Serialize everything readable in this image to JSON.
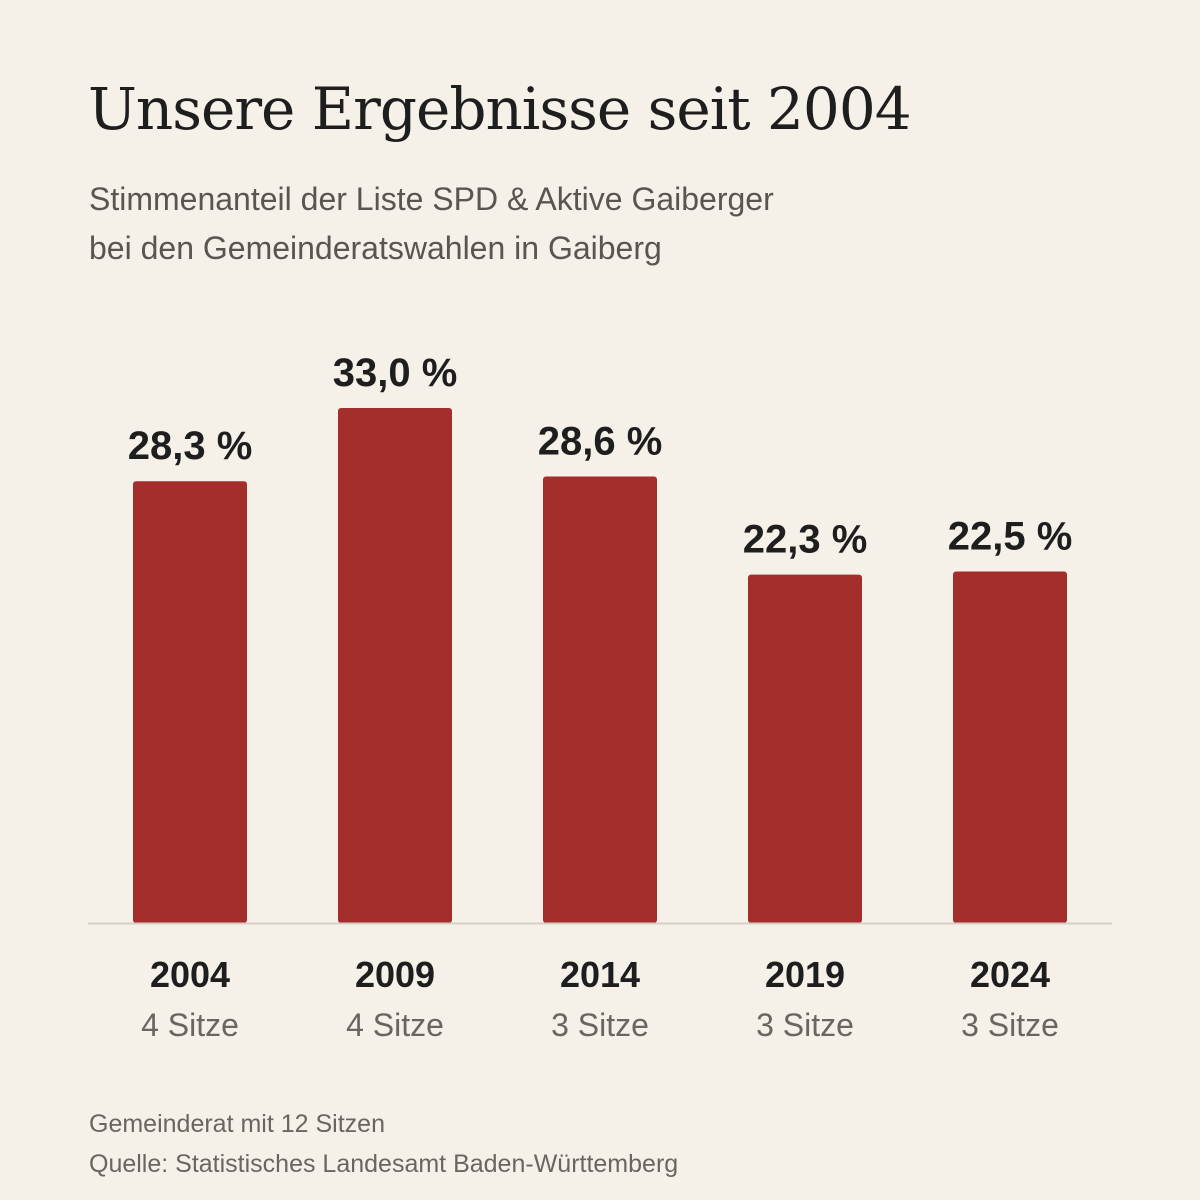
{
  "title": "Unsere Ergebnisse seit 2004",
  "subtitle": {
    "line1": "Stimmenanteil der Liste SPD & Aktive Gaiberger",
    "line2": "bei den Gemeinderatswahlen in Gaiberg"
  },
  "chart_data": {
    "type": "bar",
    "categories": [
      "2004",
      "2009",
      "2014",
      "2019",
      "2024"
    ],
    "values": [
      28.3,
      33.0,
      28.6,
      22.3,
      22.5
    ],
    "value_labels": [
      "28,3 %",
      "33,0 %",
      "28,6 %",
      "22,3 %",
      "22,5 %"
    ],
    "sublabels": [
      "4 Sitze",
      "4 Sitze",
      "3 Sitze",
      "3 Sitze",
      "3 Sitze"
    ],
    "ylim": [
      0,
      33.0
    ],
    "grid": false,
    "bar_color": "#a32e2b"
  },
  "footer": {
    "line1": "Gemeinderat mit 12 Sitzen",
    "line2": "Quelle: Statistisches Landesamt Baden-Württemberg"
  }
}
